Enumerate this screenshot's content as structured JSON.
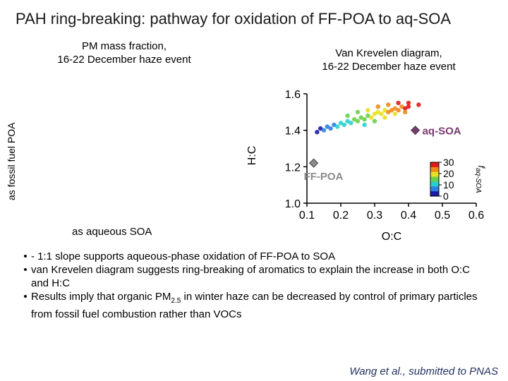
{
  "slide": {
    "title": "PAH ring-breaking: pathway for oxidation of FF-POA to aq-SOA",
    "citation": "Wang et al., submitted to PNAS"
  },
  "left_panel": {
    "subtitle_line1": "PM mass fraction,",
    "subtitle_line2": "16-22 December haze event",
    "ylabel": "as fossil fuel POA",
    "xlabel": "as aqueous SOA"
  },
  "bullets": [
    {
      "text": "- 1:1 slope supports aqueous-phase oxidation of FF-POA to SOA"
    },
    {
      "text": "van Krevelen diagram suggests ring-breaking of aromatics to explain the increase in both O:C and H:C"
    },
    {
      "text_before": " Results imply that organic PM",
      "subscript": "2.5",
      "text_after": " in winter haze can be decreased by control of primary particles from fossil fuel combustion rather than VOCs"
    }
  ],
  "chart_data": {
    "type": "scatter",
    "title_line1": "Van Krevelen diagram,",
    "title_line2": "16-22 December haze event",
    "xlabel": "O:C",
    "ylabel": "H:C",
    "xlim": [
      0.1,
      0.6
    ],
    "ylim": [
      1.0,
      1.6
    ],
    "xticks": [
      "0.1",
      "0.2",
      "0.3",
      "0.4",
      "0.5",
      "0.6"
    ],
    "yticks": [
      "1.0",
      "1.2",
      "1.4",
      "1.6"
    ],
    "grid": false,
    "colorbar": {
      "label": "f",
      "label_sub": "aq-SOA",
      "ticks": [
        "30",
        "20",
        "10",
        "0"
      ],
      "range": [
        0,
        30
      ],
      "colors": [
        "#1a1aa8",
        "#2f7fe0",
        "#29d0d0",
        "#6ad04a",
        "#e8e020",
        "#f08a18",
        "#e01a1a"
      ]
    },
    "markers": [
      {
        "label": "aq-SOA",
        "x": 0.42,
        "y": 1.4,
        "color": "#7a3a72"
      },
      {
        "label": "FF-POA",
        "x": 0.12,
        "y": 1.22,
        "color": "#8a8a8a"
      }
    ],
    "scatter_band": [
      {
        "x": 0.13,
        "y": 1.39,
        "f": 1
      },
      {
        "x": 0.14,
        "y": 1.41,
        "f": 2
      },
      {
        "x": 0.15,
        "y": 1.4,
        "f": 3
      },
      {
        "x": 0.16,
        "y": 1.42,
        "f": 4
      },
      {
        "x": 0.17,
        "y": 1.41,
        "f": 5
      },
      {
        "x": 0.18,
        "y": 1.43,
        "f": 6
      },
      {
        "x": 0.19,
        "y": 1.42,
        "f": 8
      },
      {
        "x": 0.2,
        "y": 1.44,
        "f": 9
      },
      {
        "x": 0.21,
        "y": 1.43,
        "f": 10
      },
      {
        "x": 0.22,
        "y": 1.45,
        "f": 11
      },
      {
        "x": 0.23,
        "y": 1.44,
        "f": 12
      },
      {
        "x": 0.24,
        "y": 1.46,
        "f": 13
      },
      {
        "x": 0.25,
        "y": 1.45,
        "f": 14
      },
      {
        "x": 0.26,
        "y": 1.47,
        "f": 15
      },
      {
        "x": 0.27,
        "y": 1.46,
        "f": 16
      },
      {
        "x": 0.28,
        "y": 1.48,
        "f": 17
      },
      {
        "x": 0.29,
        "y": 1.47,
        "f": 18
      },
      {
        "x": 0.3,
        "y": 1.49,
        "f": 19
      },
      {
        "x": 0.31,
        "y": 1.5,
        "f": 20
      },
      {
        "x": 0.32,
        "y": 1.49,
        "f": 21
      },
      {
        "x": 0.33,
        "y": 1.51,
        "f": 22
      },
      {
        "x": 0.34,
        "y": 1.5,
        "f": 23
      },
      {
        "x": 0.35,
        "y": 1.51,
        "f": 24
      },
      {
        "x": 0.36,
        "y": 1.52,
        "f": 25
      },
      {
        "x": 0.37,
        "y": 1.51,
        "f": 26
      },
      {
        "x": 0.38,
        "y": 1.53,
        "f": 27
      },
      {
        "x": 0.39,
        "y": 1.52,
        "f": 28
      },
      {
        "x": 0.4,
        "y": 1.53,
        "f": 29
      },
      {
        "x": 0.27,
        "y": 1.43,
        "f": 12
      },
      {
        "x": 0.3,
        "y": 1.45,
        "f": 15
      },
      {
        "x": 0.33,
        "y": 1.47,
        "f": 18
      },
      {
        "x": 0.36,
        "y": 1.49,
        "f": 22
      },
      {
        "x": 0.39,
        "y": 1.5,
        "f": 24
      },
      {
        "x": 0.22,
        "y": 1.48,
        "f": 14
      },
      {
        "x": 0.25,
        "y": 1.5,
        "f": 17
      },
      {
        "x": 0.28,
        "y": 1.51,
        "f": 20
      },
      {
        "x": 0.31,
        "y": 1.53,
        "f": 23
      },
      {
        "x": 0.34,
        "y": 1.54,
        "f": 26
      },
      {
        "x": 0.37,
        "y": 1.55,
        "f": 28
      },
      {
        "x": 0.4,
        "y": 1.55,
        "f": 30
      },
      {
        "x": 0.43,
        "y": 1.54,
        "f": 30
      }
    ]
  }
}
